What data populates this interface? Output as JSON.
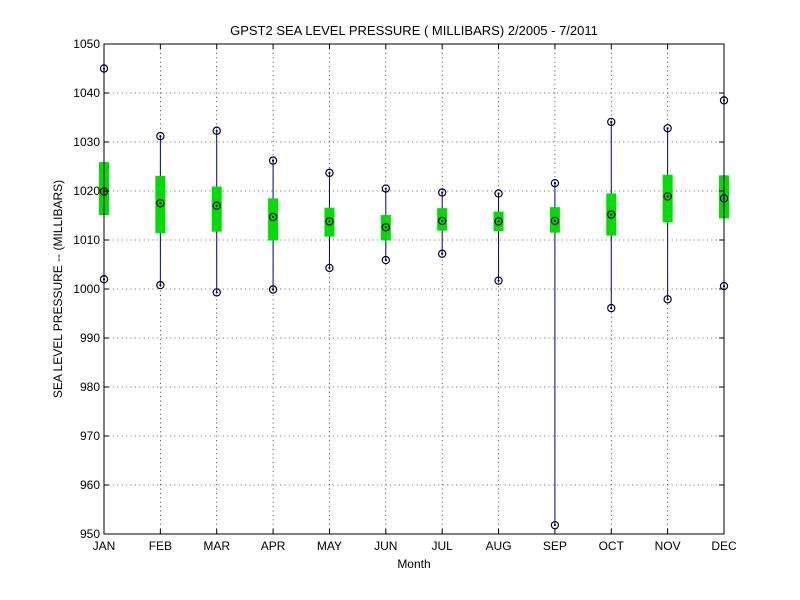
{
  "chart_data": {
    "type": "box",
    "title": "GPST2  SEA LEVEL PRESSURE ( MILLIBARS) 2/2005 - 7/2011",
    "xlabel": "Month",
    "ylabel": "SEA LEVEL PRESSURE -- (MILLIBARS)",
    "ylim": [
      950,
      1050
    ],
    "yticks": [
      950,
      960,
      970,
      980,
      990,
      1000,
      1010,
      1020,
      1030,
      1040,
      1050
    ],
    "categories": [
      "JAN",
      "FEB",
      "MAR",
      "APR",
      "MAY",
      "JUN",
      "JUL",
      "AUG",
      "SEP",
      "OCT",
      "NOV",
      "DEC"
    ],
    "max": [
      1045.0,
      1031.2,
      1032.3,
      1026.2,
      1023.7,
      1020.5,
      1019.7,
      1019.5,
      1021.6,
      1034.1,
      1032.8,
      1038.5
    ],
    "q3": [
      1025.9,
      1023.1,
      1020.9,
      1018.5,
      1016.6,
      1015.1,
      1016.5,
      1015.8,
      1016.7,
      1019.5,
      1023.3,
      1023.2
    ],
    "mean": [
      1019.9,
      1017.5,
      1017.0,
      1014.7,
      1013.8,
      1012.6,
      1013.9,
      1013.8,
      1013.9,
      1015.2,
      1018.9,
      1018.5
    ],
    "q1": [
      1015.1,
      1011.4,
      1011.7,
      1009.9,
      1010.7,
      1009.9,
      1011.9,
      1011.8,
      1011.5,
      1010.9,
      1013.6,
      1014.4
    ],
    "min": [
      1002.0,
      1000.8,
      999.3,
      999.9,
      1004.3,
      1005.9,
      1007.2,
      1001.7,
      951.8,
      996.1,
      997.9,
      1000.6
    ],
    "grid": true,
    "colors": {
      "box": "#00dd00",
      "whisker": "#00008b",
      "marker": "#000033"
    }
  }
}
